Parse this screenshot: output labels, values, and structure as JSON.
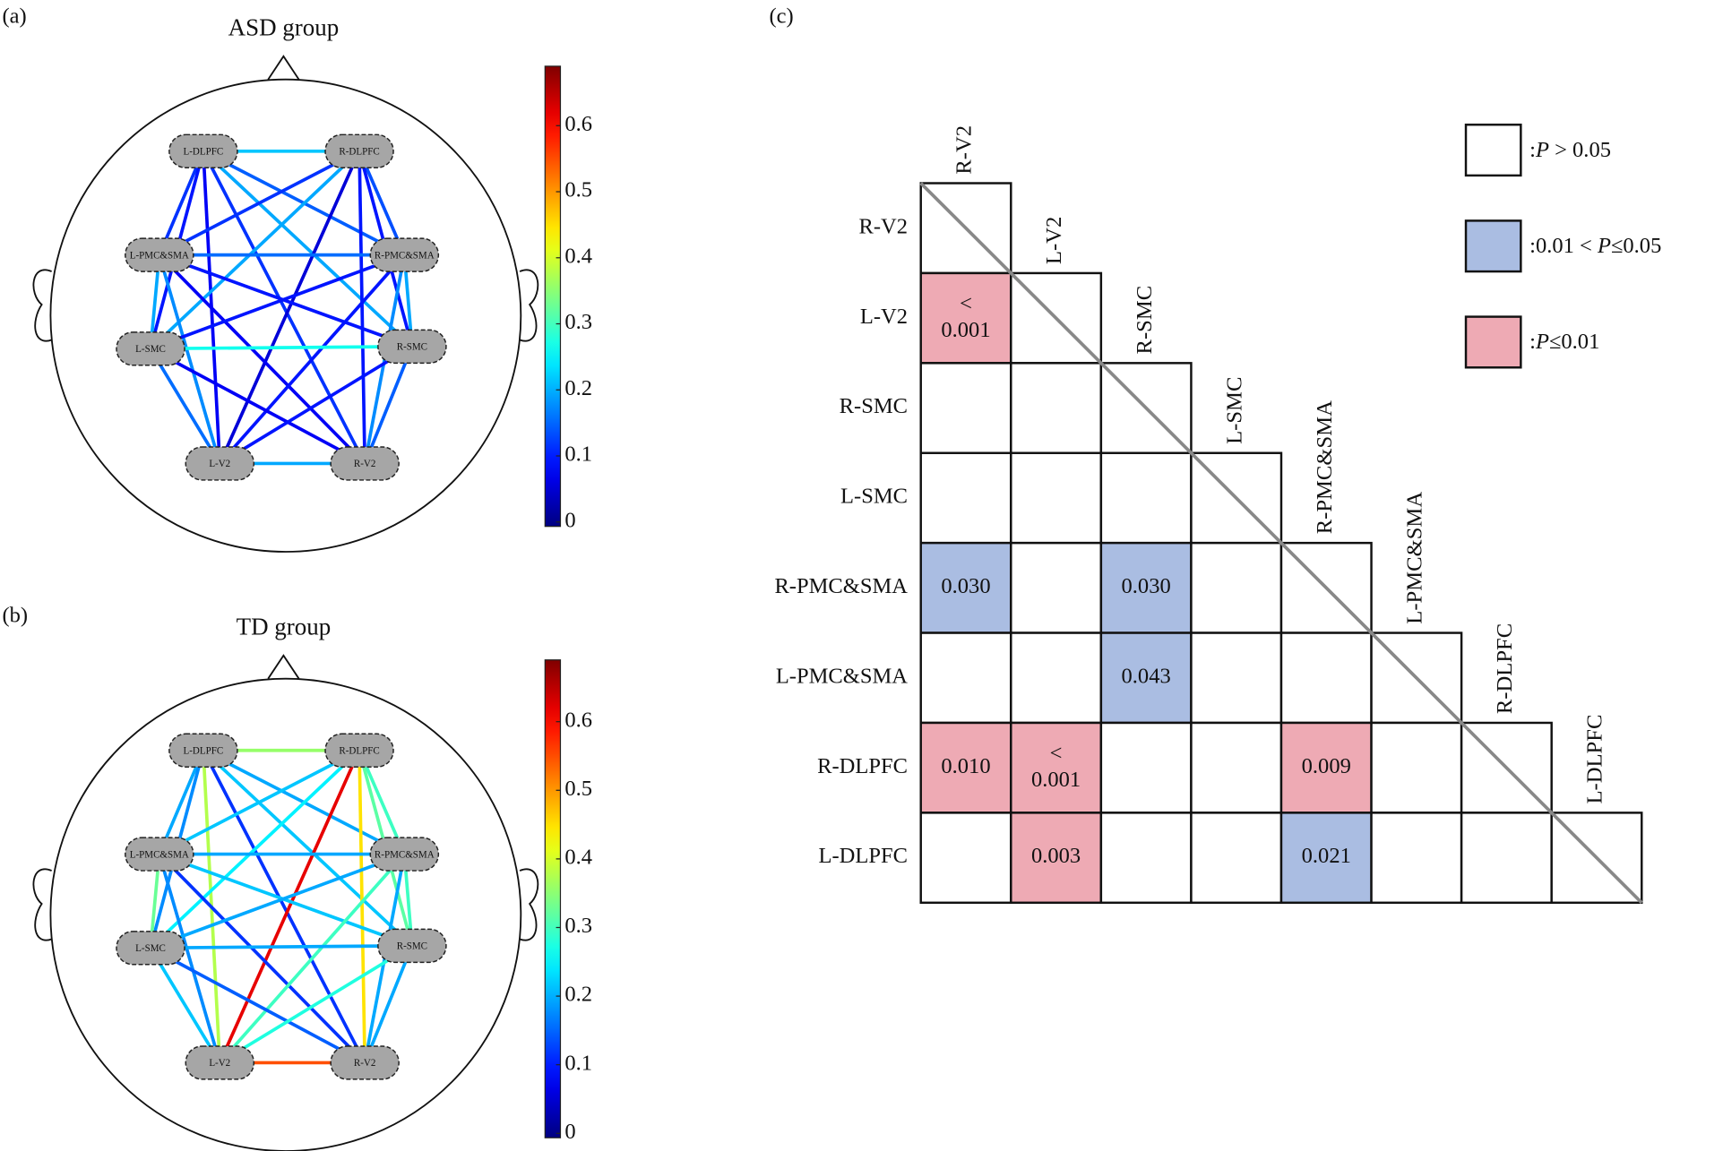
{
  "nodes": [
    "L-DLPFC",
    "R-DLPFC",
    "L-PMC&SMA",
    "R-PMC&SMA",
    "L-SMC",
    "R-SMC",
    "L-V2",
    "R-V2"
  ],
  "panels": [
    {
      "label": "(a)",
      "title": "ASD group",
      "colorbar": {
        "clim": [
          0,
          0.69
        ],
        "ticks": [
          0,
          0.1,
          0.2,
          0.3,
          0.4,
          0.5,
          0.6
        ]
      },
      "edges": [
        {
          "pair": [
            "L-DLPFC",
            "R-DLPFC"
          ],
          "value": 0.22
        },
        {
          "pair": [
            "L-DLPFC",
            "L-PMC&SMA"
          ],
          "value": 0.12
        },
        {
          "pair": [
            "L-DLPFC",
            "R-PMC&SMA"
          ],
          "value": 0.15
        },
        {
          "pair": [
            "L-DLPFC",
            "L-SMC"
          ],
          "value": 0.1
        },
        {
          "pair": [
            "L-DLPFC",
            "R-SMC"
          ],
          "value": 0.2
        },
        {
          "pair": [
            "L-DLPFC",
            "L-V2"
          ],
          "value": 0.08
        },
        {
          "pair": [
            "L-DLPFC",
            "R-V2"
          ],
          "value": 0.12
        },
        {
          "pair": [
            "R-DLPFC",
            "L-PMC&SMA"
          ],
          "value": 0.12
        },
        {
          "pair": [
            "R-DLPFC",
            "R-PMC&SMA"
          ],
          "value": 0.14
        },
        {
          "pair": [
            "R-DLPFC",
            "L-SMC"
          ],
          "value": 0.2
        },
        {
          "pair": [
            "R-DLPFC",
            "R-SMC"
          ],
          "value": 0.1
        },
        {
          "pair": [
            "R-DLPFC",
            "L-V2"
          ],
          "value": 0.06
        },
        {
          "pair": [
            "R-DLPFC",
            "R-V2"
          ],
          "value": 0.1
        },
        {
          "pair": [
            "L-PMC&SMA",
            "R-PMC&SMA"
          ],
          "value": 0.16
        },
        {
          "pair": [
            "L-PMC&SMA",
            "L-SMC"
          ],
          "value": 0.2
        },
        {
          "pair": [
            "L-PMC&SMA",
            "R-SMC"
          ],
          "value": 0.1
        },
        {
          "pair": [
            "L-PMC&SMA",
            "L-V2"
          ],
          "value": 0.18
        },
        {
          "pair": [
            "L-PMC&SMA",
            "R-V2"
          ],
          "value": 0.08
        },
        {
          "pair": [
            "R-PMC&SMA",
            "L-SMC"
          ],
          "value": 0.1
        },
        {
          "pair": [
            "R-PMC&SMA",
            "R-SMC"
          ],
          "value": 0.2
        },
        {
          "pair": [
            "R-PMC&SMA",
            "L-V2"
          ],
          "value": 0.1
        },
        {
          "pair": [
            "R-PMC&SMA",
            "R-V2"
          ],
          "value": 0.18
        },
        {
          "pair": [
            "L-SMC",
            "R-SMC"
          ],
          "value": 0.27
        },
        {
          "pair": [
            "L-SMC",
            "L-V2"
          ],
          "value": 0.16
        },
        {
          "pair": [
            "L-SMC",
            "R-V2"
          ],
          "value": 0.08
        },
        {
          "pair": [
            "R-SMC",
            "L-V2"
          ],
          "value": 0.1
        },
        {
          "pair": [
            "R-SMC",
            "R-V2"
          ],
          "value": 0.15
        },
        {
          "pair": [
            "L-V2",
            "R-V2"
          ],
          "value": 0.2
        }
      ]
    },
    {
      "label": "(b)",
      "title": "TD group",
      "colorbar": {
        "clim": [
          0,
          0.69
        ],
        "ticks": [
          0,
          0.1,
          0.2,
          0.3,
          0.4,
          0.5,
          0.6
        ]
      },
      "edges": [
        {
          "pair": [
            "L-DLPFC",
            "R-DLPFC"
          ],
          "value": 0.36
        },
        {
          "pair": [
            "L-DLPFC",
            "L-PMC&SMA"
          ],
          "value": 0.2
        },
        {
          "pair": [
            "L-DLPFC",
            "R-PMC&SMA"
          ],
          "value": 0.2
        },
        {
          "pair": [
            "L-DLPFC",
            "L-SMC"
          ],
          "value": 0.18
        },
        {
          "pair": [
            "L-DLPFC",
            "R-SMC"
          ],
          "value": 0.22
        },
        {
          "pair": [
            "L-DLPFC",
            "L-V2"
          ],
          "value": 0.38
        },
        {
          "pair": [
            "L-DLPFC",
            "R-V2"
          ],
          "value": 0.12
        },
        {
          "pair": [
            "R-DLPFC",
            "L-PMC&SMA"
          ],
          "value": 0.22
        },
        {
          "pair": [
            "R-DLPFC",
            "R-PMC&SMA"
          ],
          "value": 0.3
        },
        {
          "pair": [
            "R-DLPFC",
            "L-SMC"
          ],
          "value": 0.25
        },
        {
          "pair": [
            "R-DLPFC",
            "R-SMC"
          ],
          "value": 0.32
        },
        {
          "pair": [
            "R-DLPFC",
            "L-V2"
          ],
          "value": 0.62
        },
        {
          "pair": [
            "R-DLPFC",
            "R-V2"
          ],
          "value": 0.45
        },
        {
          "pair": [
            "L-PMC&SMA",
            "R-PMC&SMA"
          ],
          "value": 0.2
        },
        {
          "pair": [
            "L-PMC&SMA",
            "L-SMC"
          ],
          "value": 0.33
        },
        {
          "pair": [
            "L-PMC&SMA",
            "R-SMC"
          ],
          "value": 0.22
        },
        {
          "pair": [
            "L-PMC&SMA",
            "L-V2"
          ],
          "value": 0.18
        },
        {
          "pair": [
            "L-PMC&SMA",
            "R-V2"
          ],
          "value": 0.12
        },
        {
          "pair": [
            "R-PMC&SMA",
            "L-SMC"
          ],
          "value": 0.2
        },
        {
          "pair": [
            "R-PMC&SMA",
            "R-SMC"
          ],
          "value": 0.3
        },
        {
          "pair": [
            "R-PMC&SMA",
            "L-V2"
          ],
          "value": 0.3
        },
        {
          "pair": [
            "R-PMC&SMA",
            "R-V2"
          ],
          "value": 0.2
        },
        {
          "pair": [
            "L-SMC",
            "R-SMC"
          ],
          "value": 0.2
        },
        {
          "pair": [
            "L-SMC",
            "L-V2"
          ],
          "value": 0.22
        },
        {
          "pair": [
            "L-SMC",
            "R-V2"
          ],
          "value": 0.15
        },
        {
          "pair": [
            "R-SMC",
            "L-V2"
          ],
          "value": 0.28
        },
        {
          "pair": [
            "R-SMC",
            "R-V2"
          ],
          "value": 0.2
        },
        {
          "pair": [
            "L-V2",
            "R-V2"
          ],
          "value": 0.55
        }
      ]
    }
  ],
  "matrix": {
    "label": "(c)",
    "labels": [
      "R-V2",
      "L-V2",
      "R-SMC",
      "L-SMC",
      "R-PMC&SMA",
      "L-PMC&SMA",
      "R-DLPFC",
      "L-DLPFC"
    ],
    "cells": [
      [
        null
      ],
      [
        {
          "text": "< 0.001",
          "color": "#eeaab4"
        },
        null
      ],
      [
        null,
        null,
        null
      ],
      [
        null,
        null,
        null,
        null
      ],
      [
        {
          "text": "0.030",
          "color": "#aabde2"
        },
        null,
        {
          "text": "0.030",
          "color": "#aabde2"
        },
        null,
        null
      ],
      [
        null,
        null,
        {
          "text": "0.043",
          "color": "#aabde2"
        },
        null,
        null,
        null
      ],
      [
        {
          "text": "0.010",
          "color": "#eeaab4"
        },
        {
          "text": "< 0.001",
          "color": "#eeaab4"
        },
        null,
        null,
        {
          "text": "0.009",
          "color": "#eeaab4"
        },
        null,
        null
      ],
      [
        null,
        {
          "text": "0.003",
          "color": "#eeaab4"
        },
        null,
        null,
        {
          "text": "0.021",
          "color": "#aabde2"
        },
        null,
        null,
        null
      ]
    ],
    "legend": [
      {
        "label": ":P > 0.05",
        "color": "#ffffff"
      },
      {
        "label": ":0.01 < P≤0.05",
        "color": "#aabde2"
      },
      {
        "label": ":P≤0.01",
        "color": "#eeaab4"
      }
    ]
  }
}
